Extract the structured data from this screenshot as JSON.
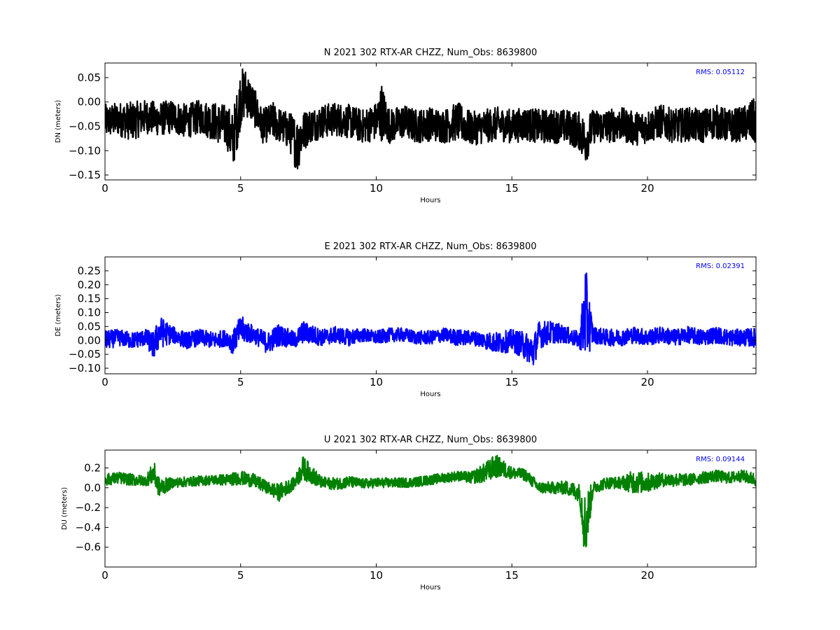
{
  "chart_data": [
    {
      "type": "line",
      "title": "N 2021 302 RTX-AR  CHZZ, Num_Obs: 8639800",
      "xlabel": "Hours",
      "ylabel": "DN (meters)",
      "xlim": [
        0,
        24
      ],
      "ylim": [
        -0.16,
        0.08
      ],
      "xticks": [
        0,
        5,
        10,
        15,
        20
      ],
      "yticks": [
        0.05,
        0.0,
        -0.05,
        -0.1,
        -0.15
      ],
      "ytick_labels": [
        "0.05",
        "0.00",
        "−0.05",
        "−0.10",
        "−0.15"
      ],
      "rms_label": "RMS:  0.05112",
      "grid": false,
      "series": [
        {
          "color": "#000000",
          "x": [
            0,
            0.5,
            1,
            1.5,
            2,
            2.5,
            3,
            3.5,
            4,
            4.5,
            4.7,
            4.9,
            5.0,
            5.2,
            5.5,
            5.8,
            6.2,
            6.5,
            6.8,
            7.1,
            7.2,
            7.5,
            8,
            8.5,
            9,
            9.5,
            10,
            10.2,
            10.5,
            11,
            11.5,
            12,
            12.5,
            13,
            13.5,
            14,
            14.5,
            15,
            15.5,
            16,
            16.5,
            17,
            17.5,
            17.7,
            18,
            18.5,
            19,
            19.5,
            20,
            20.5,
            21,
            21.5,
            22,
            22.5,
            23,
            23.5,
            24
          ],
          "values": [
            -0.04,
            -0.035,
            -0.04,
            -0.03,
            -0.035,
            -0.03,
            -0.04,
            -0.03,
            -0.04,
            -0.05,
            -0.08,
            -0.03,
            0.01,
            0.02,
            -0.01,
            -0.05,
            -0.04,
            -0.05,
            -0.06,
            -0.09,
            -0.07,
            -0.05,
            -0.04,
            -0.035,
            -0.04,
            -0.05,
            -0.04,
            -0.02,
            -0.05,
            -0.04,
            -0.05,
            -0.045,
            -0.05,
            -0.04,
            -0.055,
            -0.05,
            -0.045,
            -0.05,
            -0.045,
            -0.05,
            -0.05,
            -0.05,
            -0.06,
            -0.08,
            -0.05,
            -0.05,
            -0.045,
            -0.055,
            -0.05,
            -0.04,
            -0.05,
            -0.045,
            -0.05,
            -0.04,
            -0.05,
            -0.045,
            -0.04
          ],
          "band": [
            0.035,
            0.035,
            0.04,
            0.035,
            0.035,
            0.035,
            0.035,
            0.035,
            0.04,
            0.045,
            0.06,
            0.06,
            0.06,
            0.05,
            0.04,
            0.035,
            0.04,
            0.035,
            0.04,
            0.06,
            0.05,
            0.035,
            0.035,
            0.035,
            0.035,
            0.035,
            0.04,
            0.06,
            0.035,
            0.035,
            0.035,
            0.035,
            0.035,
            0.04,
            0.035,
            0.035,
            0.035,
            0.035,
            0.035,
            0.035,
            0.035,
            0.035,
            0.04,
            0.05,
            0.035,
            0.035,
            0.035,
            0.035,
            0.035,
            0.035,
            0.035,
            0.035,
            0.035,
            0.035,
            0.035,
            0.035,
            0.05
          ]
        }
      ]
    },
    {
      "type": "line",
      "title": "E 2021 302 RTX-AR  CHZZ, Num_Obs: 8639800",
      "xlabel": "Hours",
      "ylabel": "DE (meters)",
      "xlim": [
        0,
        24
      ],
      "ylim": [
        -0.12,
        0.3
      ],
      "xticks": [
        0,
        5,
        10,
        15,
        20
      ],
      "yticks": [
        0.25,
        0.2,
        0.15,
        0.1,
        0.05,
        0.0,
        -0.05,
        -0.1
      ],
      "ytick_labels": [
        "0.25",
        "0.20",
        "0.15",
        "0.10",
        "0.05",
        "0.00",
        "−0.05",
        "−0.10"
      ],
      "rms_label": "RMS:  0.02391",
      "grid": false,
      "series": [
        {
          "color": "#0000ff",
          "x": [
            0,
            0.5,
            1,
            1.5,
            1.8,
            2.0,
            2.5,
            3,
            3.5,
            4,
            4.5,
            4.7,
            5.0,
            5.5,
            6,
            6.4,
            7,
            7.3,
            8,
            8.5,
            9,
            9.5,
            10,
            10.5,
            11,
            11.5,
            12,
            12.5,
            13,
            13.5,
            14,
            14.5,
            15,
            15.5,
            15.8,
            16,
            16.5,
            17,
            17.5,
            17.7,
            18,
            18.5,
            19,
            19.5,
            20,
            20.5,
            21,
            21.5,
            22,
            22.5,
            23,
            23.5,
            24
          ],
          "values": [
            0.0,
            0.01,
            0.0,
            0.01,
            -0.02,
            0.03,
            0.02,
            0.0,
            0.01,
            0.0,
            0.01,
            -0.01,
            0.04,
            0.02,
            -0.01,
            0.02,
            0.0,
            0.03,
            0.01,
            0.02,
            0.01,
            0.02,
            0.01,
            0.02,
            0.02,
            0.01,
            0.01,
            0.02,
            0.01,
            0.01,
            0.0,
            -0.01,
            0.0,
            -0.02,
            -0.04,
            0.02,
            0.03,
            0.02,
            0.0,
            0.1,
            0.02,
            0.01,
            0.01,
            0.02,
            0.01,
            0.02,
            0.01,
            0.02,
            0.01,
            0.02,
            0.01,
            0.01,
            0.01
          ],
          "band": [
            0.035,
            0.03,
            0.03,
            0.03,
            0.05,
            0.06,
            0.03,
            0.03,
            0.03,
            0.03,
            0.03,
            0.04,
            0.05,
            0.03,
            0.04,
            0.04,
            0.03,
            0.04,
            0.03,
            0.03,
            0.03,
            0.025,
            0.025,
            0.025,
            0.025,
            0.025,
            0.025,
            0.025,
            0.03,
            0.025,
            0.03,
            0.04,
            0.04,
            0.05,
            0.06,
            0.05,
            0.04,
            0.03,
            0.03,
            0.18,
            0.03,
            0.03,
            0.03,
            0.03,
            0.03,
            0.03,
            0.03,
            0.03,
            0.03,
            0.03,
            0.03,
            0.03,
            0.035
          ]
        }
      ]
    },
    {
      "type": "line",
      "title": "U 2021 302 RTX-AR  CHZZ, Num_Obs: 8639800",
      "xlabel": "Hours",
      "ylabel": "DU (meters)",
      "xlim": [
        0,
        24
      ],
      "ylim": [
        -0.8,
        0.38
      ],
      "xticks": [
        0,
        5,
        10,
        15,
        20
      ],
      "yticks": [
        0.2,
        0.0,
        -0.2,
        -0.4,
        -0.6
      ],
      "ytick_labels": [
        "0.2",
        "0.0",
        "−0.2",
        "−0.4",
        "−0.6"
      ],
      "rms_label": "RMS:  0.09144",
      "grid": false,
      "series": [
        {
          "color": "#008000",
          "x": [
            0,
            0.5,
            1,
            1.5,
            1.8,
            2.0,
            2.5,
            3,
            3.5,
            4,
            4.5,
            5.0,
            5.5,
            6,
            6.4,
            7,
            7.3,
            8,
            8.5,
            9,
            9.5,
            10,
            10.5,
            11,
            11.5,
            12,
            12.5,
            13,
            13.5,
            14,
            14.4,
            15,
            15.5,
            16,
            16.5,
            17,
            17.5,
            17.7,
            18,
            18.5,
            19,
            19.5,
            20,
            20.5,
            21,
            21.5,
            22,
            22.5,
            23,
            23.5,
            24
          ],
          "values": [
            0.08,
            0.1,
            0.08,
            0.07,
            0.15,
            0.0,
            0.05,
            0.06,
            0.07,
            0.08,
            0.08,
            0.1,
            0.07,
            0.0,
            -0.05,
            0.05,
            0.2,
            0.05,
            0.04,
            0.06,
            0.04,
            0.05,
            0.05,
            0.05,
            0.06,
            0.08,
            0.1,
            0.12,
            0.1,
            0.15,
            0.22,
            0.15,
            0.13,
            0.0,
            0.0,
            0.0,
            -0.05,
            -0.4,
            0.0,
            0.05,
            0.05,
            0.06,
            0.05,
            0.08,
            0.08,
            0.08,
            0.1,
            0.12,
            0.1,
            0.12,
            0.08
          ],
          "band": [
            0.06,
            0.06,
            0.06,
            0.05,
            0.12,
            0.1,
            0.05,
            0.05,
            0.05,
            0.05,
            0.06,
            0.07,
            0.07,
            0.06,
            0.09,
            0.06,
            0.12,
            0.06,
            0.06,
            0.06,
            0.05,
            0.05,
            0.05,
            0.05,
            0.05,
            0.05,
            0.05,
            0.05,
            0.06,
            0.1,
            0.12,
            0.06,
            0.06,
            0.06,
            0.06,
            0.07,
            0.09,
            0.36,
            0.06,
            0.06,
            0.06,
            0.12,
            0.1,
            0.07,
            0.07,
            0.06,
            0.06,
            0.06,
            0.06,
            0.06,
            0.07
          ]
        }
      ]
    }
  ]
}
